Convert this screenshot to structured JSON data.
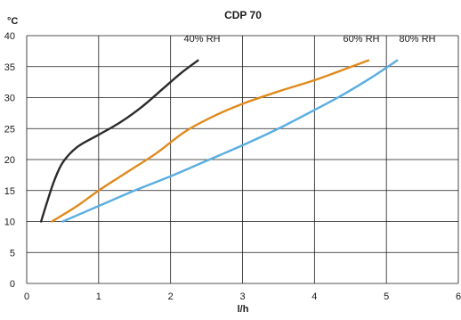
{
  "chart_data": {
    "type": "line",
    "title": "CDP 70",
    "xlabel": "l/h",
    "ylabel": "°C",
    "xlim": [
      0,
      6
    ],
    "ylim": [
      0,
      40
    ],
    "x_ticks": [
      0,
      1,
      2,
      3,
      4,
      5,
      6
    ],
    "y_ticks": [
      0,
      5,
      10,
      15,
      20,
      25,
      30,
      35,
      40
    ],
    "grid": true,
    "series": [
      {
        "name": "40% RH",
        "color": "#2b2b2b",
        "points": [
          [
            0.2,
            10
          ],
          [
            0.28,
            13
          ],
          [
            0.38,
            16.5
          ],
          [
            0.5,
            19.5
          ],
          [
            0.7,
            22
          ],
          [
            1.0,
            24
          ],
          [
            1.3,
            26
          ],
          [
            1.6,
            28.5
          ],
          [
            1.9,
            31.5
          ],
          [
            2.15,
            34
          ],
          [
            2.38,
            36
          ]
        ]
      },
      {
        "name": "60% RH",
        "color": "#e08a1c",
        "points": [
          [
            0.35,
            10
          ],
          [
            0.7,
            12.5
          ],
          [
            1.0,
            15
          ],
          [
            1.4,
            18
          ],
          [
            1.8,
            21
          ],
          [
            2.2,
            24.5
          ],
          [
            2.6,
            27
          ],
          [
            3.0,
            29
          ],
          [
            3.5,
            31
          ],
          [
            4.0,
            32.8
          ],
          [
            4.4,
            34.5
          ],
          [
            4.75,
            36
          ]
        ]
      },
      {
        "name": "80% RH",
        "color": "#5aaee0",
        "points": [
          [
            0.5,
            10
          ],
          [
            1.0,
            12.5
          ],
          [
            1.5,
            15
          ],
          [
            2.0,
            17.3
          ],
          [
            2.5,
            19.8
          ],
          [
            3.0,
            22.3
          ],
          [
            3.5,
            25
          ],
          [
            4.0,
            28
          ],
          [
            4.4,
            30.5
          ],
          [
            4.8,
            33.3
          ],
          [
            5.15,
            36
          ]
        ]
      }
    ],
    "legend_placement": "top, above each curve end"
  }
}
